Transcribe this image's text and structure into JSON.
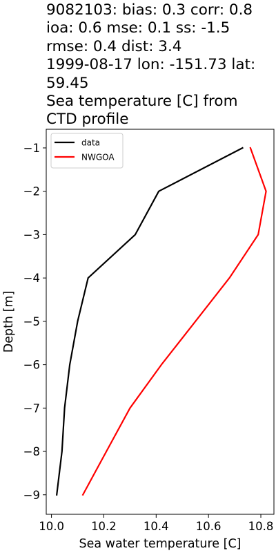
{
  "title_lines": [
    "9082103: bias: 0.3  corr: 0.8",
    "ioa: 0.6  mse: 0.1  ss: -1.5",
    "rmse: 0.4  dist: 3.4",
    "1999-08-17 lon: -151.73 lat:",
    "59.45",
    "Sea temperature [C] from",
    "CTD profile"
  ],
  "chart_data": {
    "type": "line",
    "xlabel": "Sea water temperature [C]",
    "ylabel": "Depth [m]",
    "xlim": [
      9.98,
      10.85
    ],
    "ylim": [
      -9.45,
      -0.57
    ],
    "x_ticks": [
      10.0,
      10.2,
      10.4,
      10.6,
      10.8
    ],
    "x_tick_labels": [
      "10.0",
      "10.2",
      "10.4",
      "10.6",
      "10.8"
    ],
    "y_ticks": [
      -1,
      -2,
      -3,
      -4,
      -5,
      -6,
      -7,
      -8,
      -9
    ],
    "y_tick_labels": [
      "−1",
      "−2",
      "−3",
      "−4",
      "−5",
      "−6",
      "−7",
      "−8",
      "−9"
    ],
    "grid": false,
    "legend_position": "upper-left",
    "series": [
      {
        "name": "data",
        "color": "#000000",
        "points": [
          [
            10.73,
            -1
          ],
          [
            10.41,
            -2
          ],
          [
            10.32,
            -3
          ],
          [
            10.14,
            -4
          ],
          [
            10.1,
            -5
          ],
          [
            10.07,
            -6
          ],
          [
            10.05,
            -7
          ],
          [
            10.04,
            -8
          ],
          [
            10.02,
            -9
          ]
        ]
      },
      {
        "name": "NWGOA",
        "color": "#ff0000",
        "points": [
          [
            10.76,
            -1
          ],
          [
            10.82,
            -2
          ],
          [
            10.79,
            -3
          ],
          [
            10.68,
            -4
          ],
          [
            10.55,
            -5
          ],
          [
            10.42,
            -6
          ],
          [
            10.3,
            -7
          ],
          [
            10.21,
            -8
          ],
          [
            10.12,
            -9
          ]
        ]
      }
    ]
  }
}
